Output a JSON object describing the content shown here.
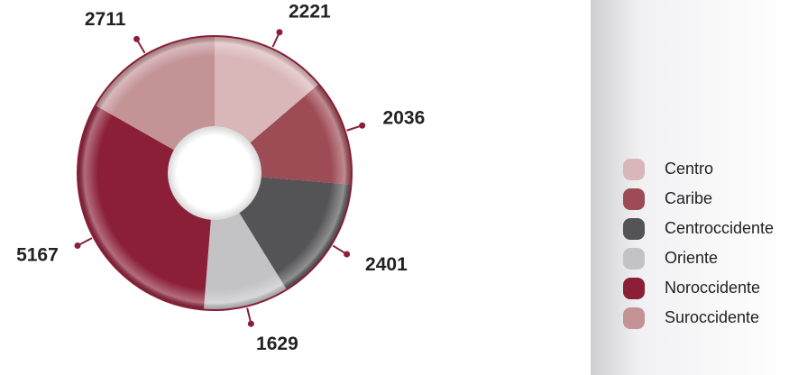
{
  "chart_data": {
    "type": "donut",
    "categories": [
      "Centro",
      "Caribe",
      "Centroccidente",
      "Oriente",
      "Noroccidente",
      "Suroccidente"
    ],
    "values": [
      2221,
      2036,
      2401,
      1629,
      5167,
      2711
    ],
    "colors": [
      "#d9b6b8",
      "#9d4b55",
      "#545456",
      "#c3c3c6",
      "#8a1f37",
      "#c39396"
    ],
    "legend": "right"
  }
}
